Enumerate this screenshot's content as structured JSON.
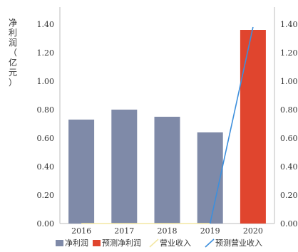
{
  "chart_data": {
    "type": "bar",
    "categories": [
      "2016",
      "2017",
      "2018",
      "2019",
      "2020"
    ],
    "ylabel": "净利润（亿元）",
    "ylim": [
      0,
      1.4
    ],
    "y2lim": [
      0,
      1.4
    ],
    "yticks": [
      "0.00",
      "0.20",
      "0.40",
      "0.60",
      "0.80",
      "1.00",
      "1.20",
      "1.40"
    ],
    "y2ticks": [
      "0.00",
      "0.20",
      "0.40",
      "0.60",
      "0.80",
      "1.00",
      "1.20",
      "1.40"
    ],
    "grid": false,
    "legend_position": "bottom",
    "series": [
      {
        "name": "净利润",
        "type": "bar",
        "color": "#7f8aa8",
        "values": [
          0.73,
          0.8,
          0.75,
          0.64,
          null
        ]
      },
      {
        "name": "预测净利润",
        "type": "bar",
        "color": "#e0452e",
        "values": [
          null,
          null,
          null,
          null,
          1.36
        ]
      },
      {
        "name": "营业收入",
        "type": "line",
        "axis": "right",
        "color": "#f3e7a4",
        "values": [
          0.0,
          0.0,
          0.0,
          0.0,
          null
        ]
      },
      {
        "name": "预测营业收入",
        "type": "line",
        "axis": "right",
        "color": "#3d8fdc",
        "values": [
          null,
          null,
          null,
          0.0,
          1.38
        ]
      }
    ]
  }
}
